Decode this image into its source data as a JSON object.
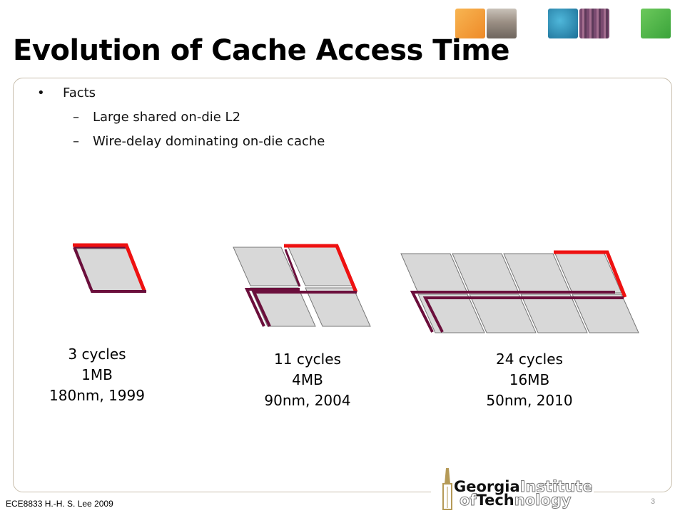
{
  "slide": {
    "title": "Evolution of Cache Access Time",
    "bullets": [
      {
        "mark": "•",
        "text": "Facts",
        "level": 1
      },
      {
        "mark": "–",
        "text": "Large shared on-die L2",
        "level": 2
      },
      {
        "mark": "–",
        "text": "Wire-delay dominating on-die cache",
        "level": 2
      }
    ],
    "captions": [
      {
        "cycles": "3 cycles",
        "size": "1MB",
        "process": "180nm,  1999"
      },
      {
        "cycles": "11 cycles",
        "size": "4MB",
        "process": "90nm, 2004"
      },
      {
        "cycles": "24 cycles",
        "size": "16MB",
        "process": "50nm, 2010"
      }
    ],
    "footer": "ECE8833 H.-H. S. Lee 2009",
    "page_number": "3"
  },
  "logo": {
    "georgia": "Georgia",
    "institute": "Institute",
    "of": "of",
    "tech": "Tech",
    "nology": "nology"
  },
  "colors": {
    "accent_red": "#ee1111",
    "wire_maroon": "#6b0f3c",
    "cell_fill": "#d8d8d8",
    "frame": "#c9bfae",
    "logo_gold": "#b59a57"
  },
  "header_squares": [
    {
      "name": "orange-photo-square",
      "color": "#f4a13a"
    },
    {
      "name": "campus-photo-square",
      "color": "#8f8378"
    },
    {
      "name": "teal-photo-square",
      "color": "#2c8fb6"
    },
    {
      "name": "circuit-photo-square",
      "color": "#8a5a7e"
    },
    {
      "name": "green-photo-square",
      "color": "#4fb848"
    }
  ]
}
